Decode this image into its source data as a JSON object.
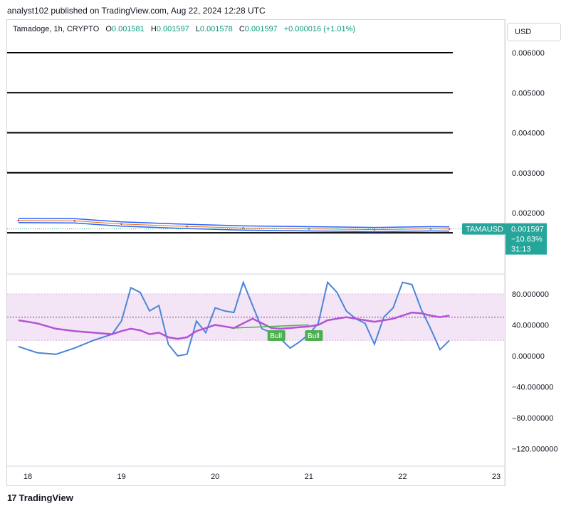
{
  "publisher_line": "analyst102 published on TradingView.com, Aug 22, 2024 12:28 UTC",
  "legend": {
    "symbol": "Tamadoge, 1h, CRYPTO",
    "open_label": "O",
    "open": "0.001581",
    "high_label": "H",
    "high": "0.001597",
    "low_label": "L",
    "low": "0.001578",
    "close_label": "C",
    "close": "0.001597",
    "change": "+0.000016 (+1.01%)"
  },
  "currency_button": "USD",
  "price_badge": {
    "ticker": "TAMAUSD",
    "price": "0.001597",
    "change": "−10.63%",
    "countdown": "31:13"
  },
  "brand": "TradingView",
  "colors": {
    "bull_label": "#4caf50",
    "stoch_k": "#4a86d8",
    "stoch_d": "#b452d6",
    "band_fill": "#f3e5f5",
    "price_badge": "#26a69a"
  },
  "chart_data": [
    {
      "type": "line",
      "title": "Tamadoge, 1h, CRYPTO",
      "y_axis_ticks": [
        "0.006000",
        "0.005000",
        "0.004000",
        "0.003000",
        "0.002000"
      ],
      "ylim": [
        0.0014,
        0.0063
      ],
      "x_tick_labels": [
        "18",
        "19",
        "20",
        "21",
        "22",
        "23"
      ],
      "horizontal_levels": [
        0.006,
        0.005,
        0.004,
        0.003,
        0.0015
      ],
      "series": [
        {
          "name": "",
          "x": [
            17.9,
            18.5,
            19.0,
            19.7,
            20.3,
            21.0,
            21.7,
            22.3,
            22.5
          ],
          "values": [
            0.00181,
            0.0018,
            0.00172,
            0.00166,
            0.00162,
            0.0016,
            0.00158,
            0.0016,
            0.001597
          ]
        }
      ]
    },
    {
      "type": "line",
      "y_axis_ticks": [
        "80.000000",
        "40.000000",
        "0.000000",
        "−40.000000",
        "−80.000000",
        "−120.000000"
      ],
      "ylim": [
        -140,
        100
      ],
      "band": [
        20,
        80
      ],
      "x_tick_labels": [
        "18",
        "19",
        "20",
        "21",
        "22",
        "23"
      ],
      "annotations": [
        "Bull",
        "Bull"
      ],
      "series": [
        {
          "name": "",
          "x": [
            17.9,
            18.1,
            18.3,
            18.5,
            18.7,
            18.9,
            19.0,
            19.1,
            19.2,
            19.3,
            19.4,
            19.5,
            19.6,
            19.7,
            19.8,
            19.9,
            20.0,
            20.1,
            20.2,
            20.3,
            20.4,
            20.5,
            20.6,
            20.7,
            20.8,
            20.9,
            21.0,
            21.1,
            21.2,
            21.3,
            21.4,
            21.5,
            21.6,
            21.7,
            21.8,
            21.9,
            22.0,
            22.1,
            22.2,
            22.3,
            22.4,
            22.5
          ],
          "values": [
            12,
            4,
            2,
            10,
            20,
            28,
            45,
            88,
            82,
            58,
            65,
            15,
            0,
            2,
            45,
            30,
            62,
            58,
            56,
            95,
            65,
            35,
            30,
            22,
            10,
            18,
            28,
            42,
            95,
            82,
            58,
            48,
            42,
            15,
            50,
            62,
            95,
            92,
            60,
            35,
            8,
            20
          ]
        },
        {
          "name": "",
          "x": [
            17.9,
            18.1,
            18.3,
            18.5,
            18.7,
            18.9,
            19.0,
            19.1,
            19.2,
            19.3,
            19.4,
            19.5,
            19.6,
            19.7,
            19.8,
            19.9,
            20.0,
            20.1,
            20.2,
            20.3,
            20.4,
            20.5,
            20.6,
            20.7,
            20.8,
            20.9,
            21.0,
            21.1,
            21.2,
            21.3,
            21.4,
            21.5,
            21.6,
            21.7,
            21.8,
            21.9,
            22.0,
            22.1,
            22.2,
            22.3,
            22.4,
            22.5
          ],
          "values": [
            46,
            42,
            35,
            32,
            30,
            28,
            32,
            35,
            33,
            28,
            30,
            24,
            22,
            24,
            32,
            36,
            40,
            38,
            36,
            42,
            48,
            42,
            36,
            35,
            36,
            37,
            38,
            40,
            46,
            48,
            50,
            48,
            46,
            44,
            46,
            48,
            52,
            56,
            55,
            52,
            50,
            52
          ]
        }
      ]
    }
  ]
}
